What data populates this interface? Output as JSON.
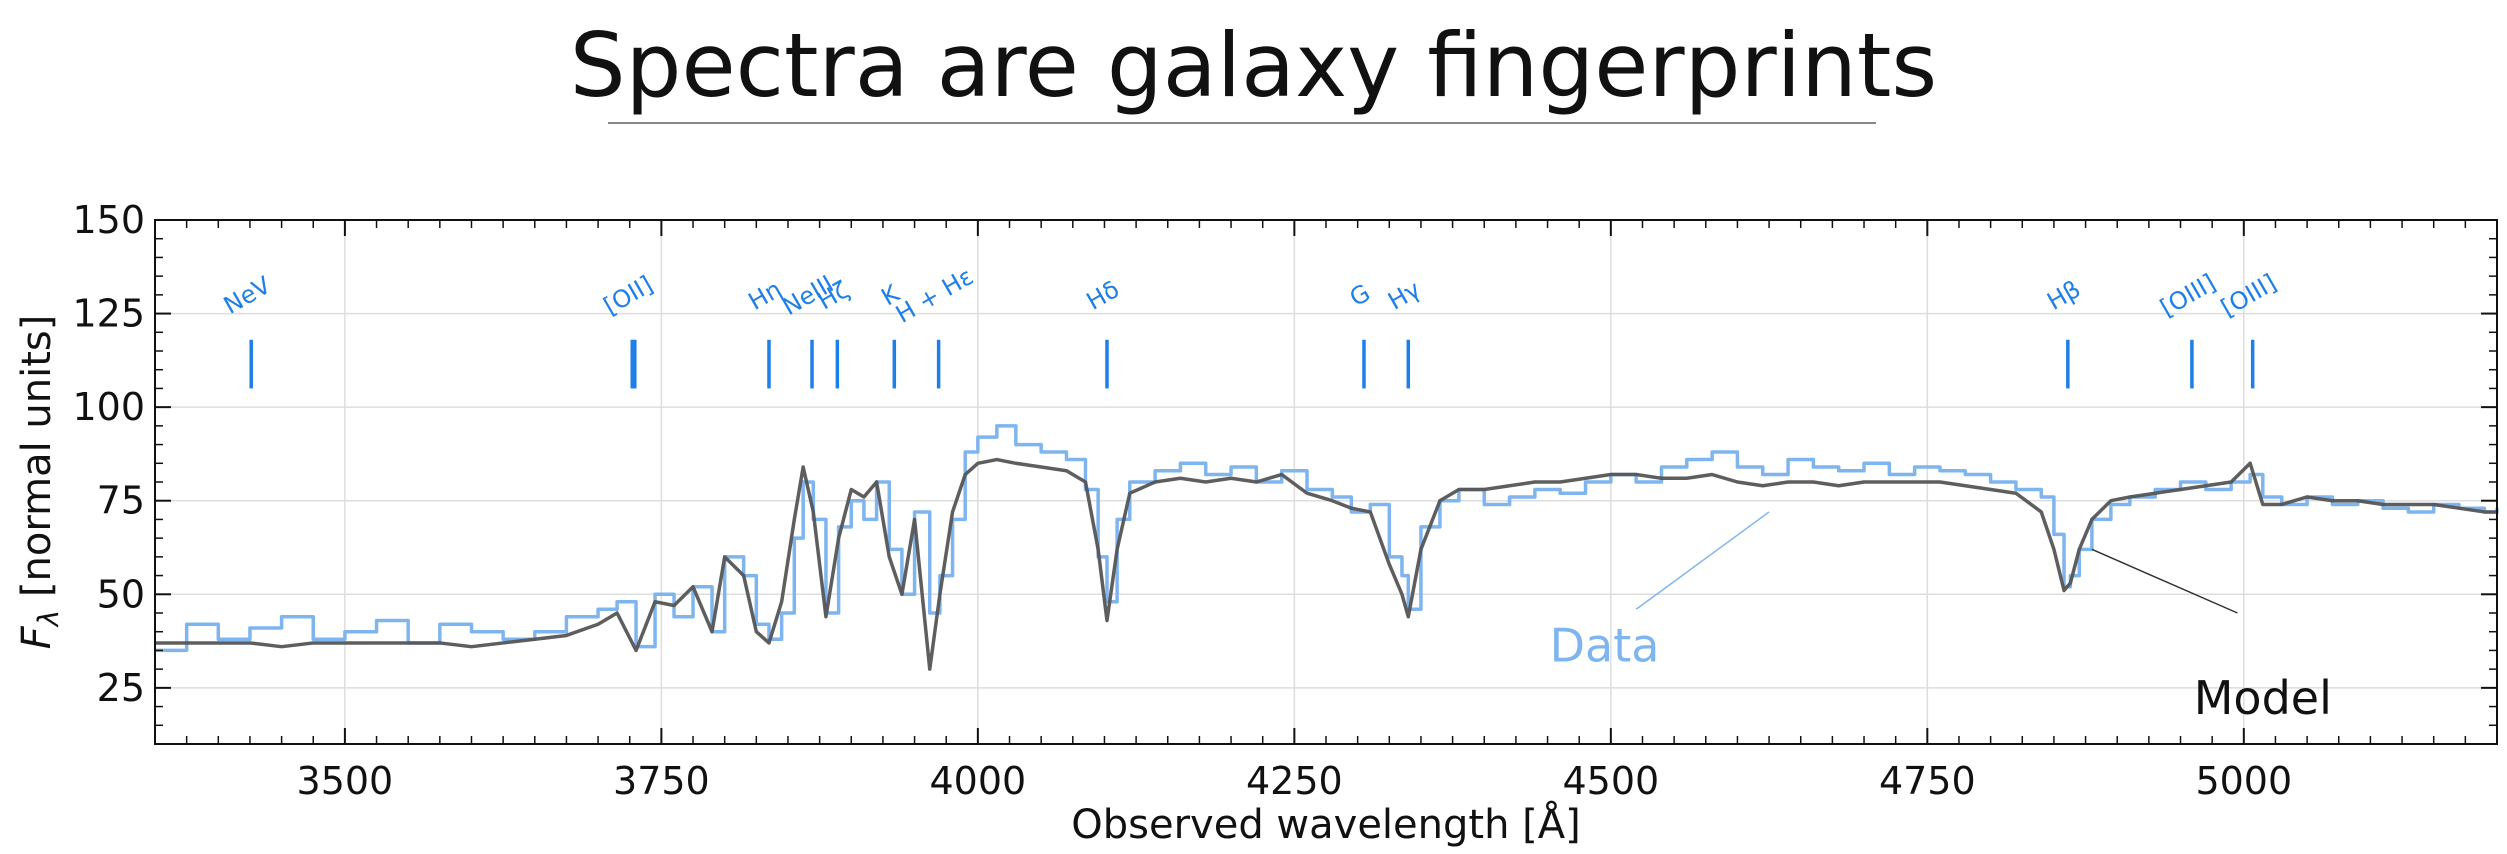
{
  "title": "Spectra are galaxy fingerprints",
  "chart_data": {
    "type": "line",
    "xlabel": "Observed wavelength [Å]",
    "ylabel_main": "F",
    "ylabel_sub": "λ",
    "ylabel_rest": " [normal units]",
    "xlim": [
      3350,
      5200
    ],
    "ylim": [
      10,
      150
    ],
    "x_ticks": [
      "3500",
      "3750",
      "4000",
      "4250",
      "4500",
      "4750",
      "5000"
    ],
    "x_tick_values": [
      3500,
      3750,
      4000,
      4250,
      4500,
      4750,
      5000
    ],
    "y_ticks": [
      "25",
      "50",
      "75",
      "100",
      "125",
      "150"
    ],
    "y_tick_values": [
      25,
      50,
      75,
      100,
      125,
      150
    ],
    "grid": true,
    "lines": [
      {
        "label": "NeV",
        "wavelength": 3426
      },
      {
        "label": "[OII]",
        "wavelength": 3727
      },
      {
        "label": "[OII]",
        "wavelength": 3729
      },
      {
        "label": "Hη",
        "wavelength": 3835
      },
      {
        "label": "NeIII",
        "wavelength": 3869
      },
      {
        "label": "Hζ",
        "wavelength": 3889
      },
      {
        "label": "K",
        "wavelength": 3934
      },
      {
        "label": "H + Hε",
        "wavelength": 3969
      },
      {
        "label": "Hδ",
        "wavelength": 4102
      },
      {
        "label": "G",
        "wavelength": 4305
      },
      {
        "label": "Hγ",
        "wavelength": 4340
      },
      {
        "label": "Hβ",
        "wavelength": 4861
      },
      {
        "label": "[OIII]",
        "wavelength": 4959
      },
      {
        "label": "[OIII]",
        "wavelength": 5007
      }
    ],
    "series": [
      {
        "name": "Data",
        "color": "#7fb5ef",
        "x": [
          3350,
          3375,
          3400,
          3425,
          3450,
          3475,
          3500,
          3525,
          3550,
          3575,
          3600,
          3625,
          3650,
          3675,
          3700,
          3715,
          3730,
          3745,
          3760,
          3775,
          3790,
          3800,
          3815,
          3825,
          3835,
          3845,
          3855,
          3862,
          3870,
          3880,
          3890,
          3900,
          3910,
          3920,
          3930,
          3940,
          3950,
          3962,
          3970,
          3980,
          3990,
          4000,
          4015,
          4030,
          4050,
          4070,
          4085,
          4095,
          4102,
          4110,
          4120,
          4140,
          4160,
          4180,
          4200,
          4220,
          4240,
          4260,
          4280,
          4295,
          4310,
          4325,
          4335,
          4340,
          4350,
          4365,
          4380,
          4400,
          4420,
          4440,
          4460,
          4480,
          4500,
          4520,
          4540,
          4560,
          4580,
          4600,
          4620,
          4640,
          4660,
          4680,
          4700,
          4720,
          4740,
          4760,
          4780,
          4800,
          4820,
          4840,
          4850,
          4858,
          4863,
          4870,
          4880,
          4895,
          4910,
          4930,
          4950,
          4970,
          4990,
          5005,
          5015,
          5030,
          5050,
          5070,
          5090,
          5110,
          5130,
          5150,
          5170,
          5190,
          5200
        ],
        "y": [
          35,
          42,
          38,
          41,
          44,
          38,
          40,
          43,
          37,
          42,
          40,
          38,
          40,
          44,
          46,
          48,
          36,
          50,
          44,
          52,
          40,
          60,
          55,
          42,
          38,
          45,
          65,
          80,
          70,
          45,
          68,
          75,
          70,
          80,
          62,
          50,
          72,
          45,
          55,
          70,
          88,
          92,
          95,
          90,
          88,
          86,
          78,
          60,
          48,
          70,
          80,
          83,
          85,
          82,
          84,
          80,
          83,
          78,
          76,
          72,
          74,
          60,
          55,
          46,
          68,
          75,
          78,
          74,
          76,
          78,
          77,
          80,
          82,
          80,
          84,
          86,
          88,
          84,
          82,
          86,
          84,
          83,
          85,
          82,
          84,
          83,
          82,
          80,
          78,
          76,
          66,
          52,
          55,
          62,
          70,
          74,
          76,
          78,
          80,
          78,
          80,
          82,
          76,
          74,
          76,
          74,
          75,
          73,
          72,
          74,
          73,
          72,
          73
        ]
      },
      {
        "name": "Model",
        "color": "#555555",
        "x": [
          3350,
          3375,
          3400,
          3425,
          3450,
          3475,
          3500,
          3525,
          3550,
          3575,
          3600,
          3625,
          3650,
          3675,
          3700,
          3715,
          3730,
          3745,
          3760,
          3775,
          3790,
          3800,
          3815,
          3825,
          3835,
          3845,
          3855,
          3862,
          3870,
          3880,
          3890,
          3900,
          3910,
          3920,
          3930,
          3940,
          3950,
          3962,
          3970,
          3980,
          3990,
          4000,
          4015,
          4030,
          4050,
          4070,
          4085,
          4095,
          4102,
          4110,
          4120,
          4140,
          4160,
          4180,
          4200,
          4220,
          4240,
          4260,
          4280,
          4295,
          4310,
          4325,
          4335,
          4340,
          4350,
          4365,
          4380,
          4400,
          4420,
          4440,
          4460,
          4480,
          4500,
          4520,
          4540,
          4560,
          4580,
          4600,
          4620,
          4640,
          4660,
          4680,
          4700,
          4720,
          4740,
          4760,
          4780,
          4800,
          4820,
          4840,
          4850,
          4858,
          4863,
          4870,
          4880,
          4895,
          4910,
          4930,
          4950,
          4970,
          4990,
          5005,
          5015,
          5030,
          5050,
          5070,
          5090,
          5110,
          5130,
          5150,
          5170,
          5190,
          5200
        ],
        "y": [
          37,
          37,
          37,
          37,
          36,
          37,
          37,
          37,
          37,
          37,
          36,
          37,
          38,
          39,
          42,
          45,
          35,
          48,
          47,
          52,
          40,
          60,
          55,
          40,
          37,
          48,
          70,
          84,
          72,
          44,
          65,
          78,
          76,
          80,
          60,
          50,
          70,
          30,
          50,
          72,
          82,
          85,
          86,
          85,
          84,
          83,
          80,
          62,
          43,
          62,
          77,
          80,
          81,
          80,
          81,
          80,
          82,
          77,
          75,
          73,
          72,
          58,
          50,
          44,
          62,
          75,
          78,
          78,
          79,
          80,
          80,
          81,
          82,
          82,
          81,
          81,
          82,
          80,
          79,
          80,
          80,
          79,
          80,
          80,
          80,
          80,
          79,
          78,
          77,
          72,
          62,
          51,
          53,
          62,
          70,
          75,
          76,
          77,
          78,
          79,
          80,
          85,
          74,
          74,
          76,
          75,
          75,
          74,
          74,
          74,
          73,
          72,
          72
        ]
      }
    ],
    "annotations": [
      {
        "text": "Data",
        "color": "#7fb5ef"
      },
      {
        "text": "Model",
        "color": "#111111"
      }
    ],
    "line_marker_color": "#1e7fe8"
  }
}
